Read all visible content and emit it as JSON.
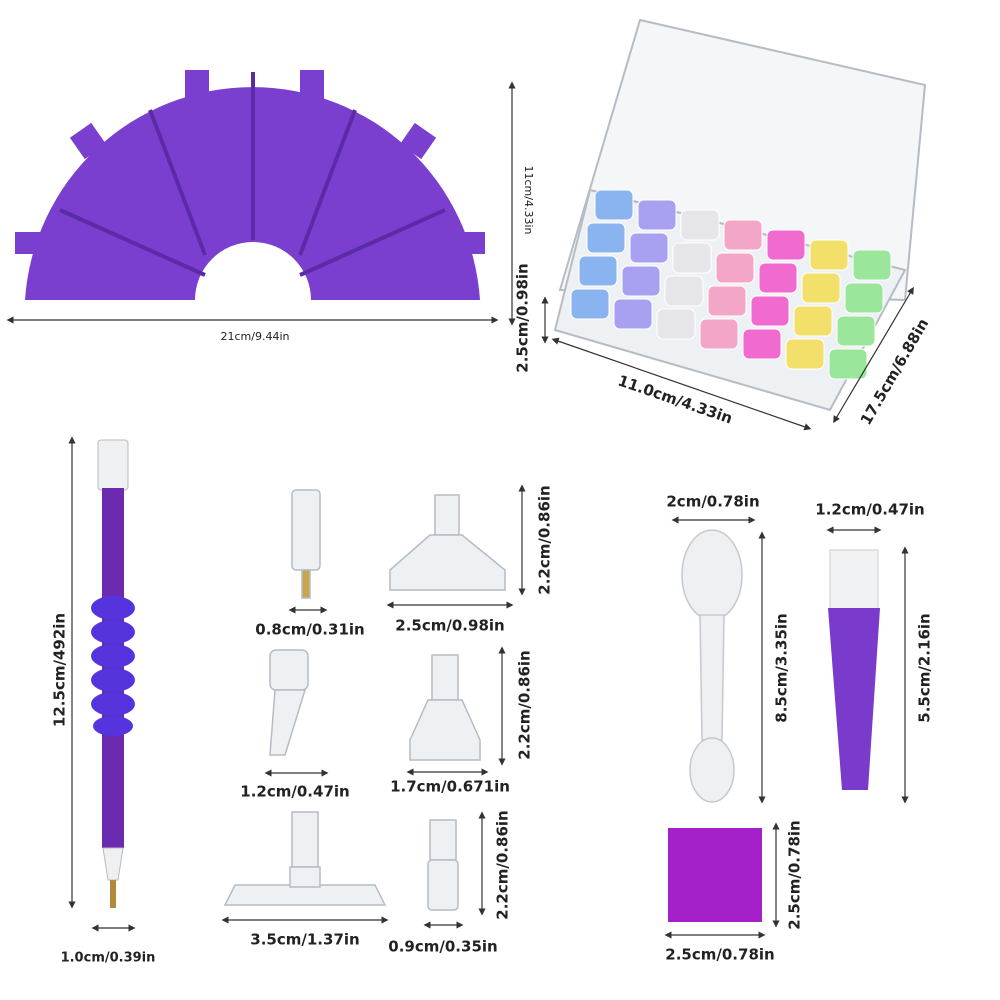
{
  "labels": [
    "21cm/9.44in",
    "11cm/4.33in",
    "2.5cm/0.98in",
    "11.0cm/4.33in",
    "17.5cm/6.88in",
    "12.5cm/492in",
    "1.0cm/0.39in",
    "0.8cm/0.31in",
    "2.5cm/0.98in",
    "2.2cm/0.86in",
    "1.2cm/0.47in",
    "1.7cm/0.671in",
    "2.2cm/0.86in",
    "3.5cm/1.37in",
    "0.9cm/0.35in",
    "2.2cm/0.86in",
    "2cm/0.78in",
    "8.5cm/3.35in",
    "1.2cm/0.47in",
    "5.5cm/2.16in",
    "2.5cm/0.78in",
    "2.5cm/0.78in"
  ]
}
